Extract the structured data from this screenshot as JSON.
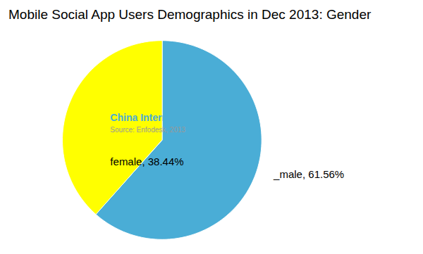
{
  "chart_data": {
    "type": "pie",
    "title": "Mobile Social App Users Demographics in Dec 2013: Gender",
    "categories": [
      "_male, 61.56%",
      "female, 38.44%"
    ],
    "values": [
      61.56,
      38.44
    ],
    "colors": [
      "#4AADD6",
      "#FFFF00"
    ],
    "annotations": [
      {
        "text": "China Internet Watch",
        "color": "#4AADD6"
      },
      {
        "text": "Source: Enfodesk, 2013",
        "color": "#999999"
      }
    ]
  }
}
